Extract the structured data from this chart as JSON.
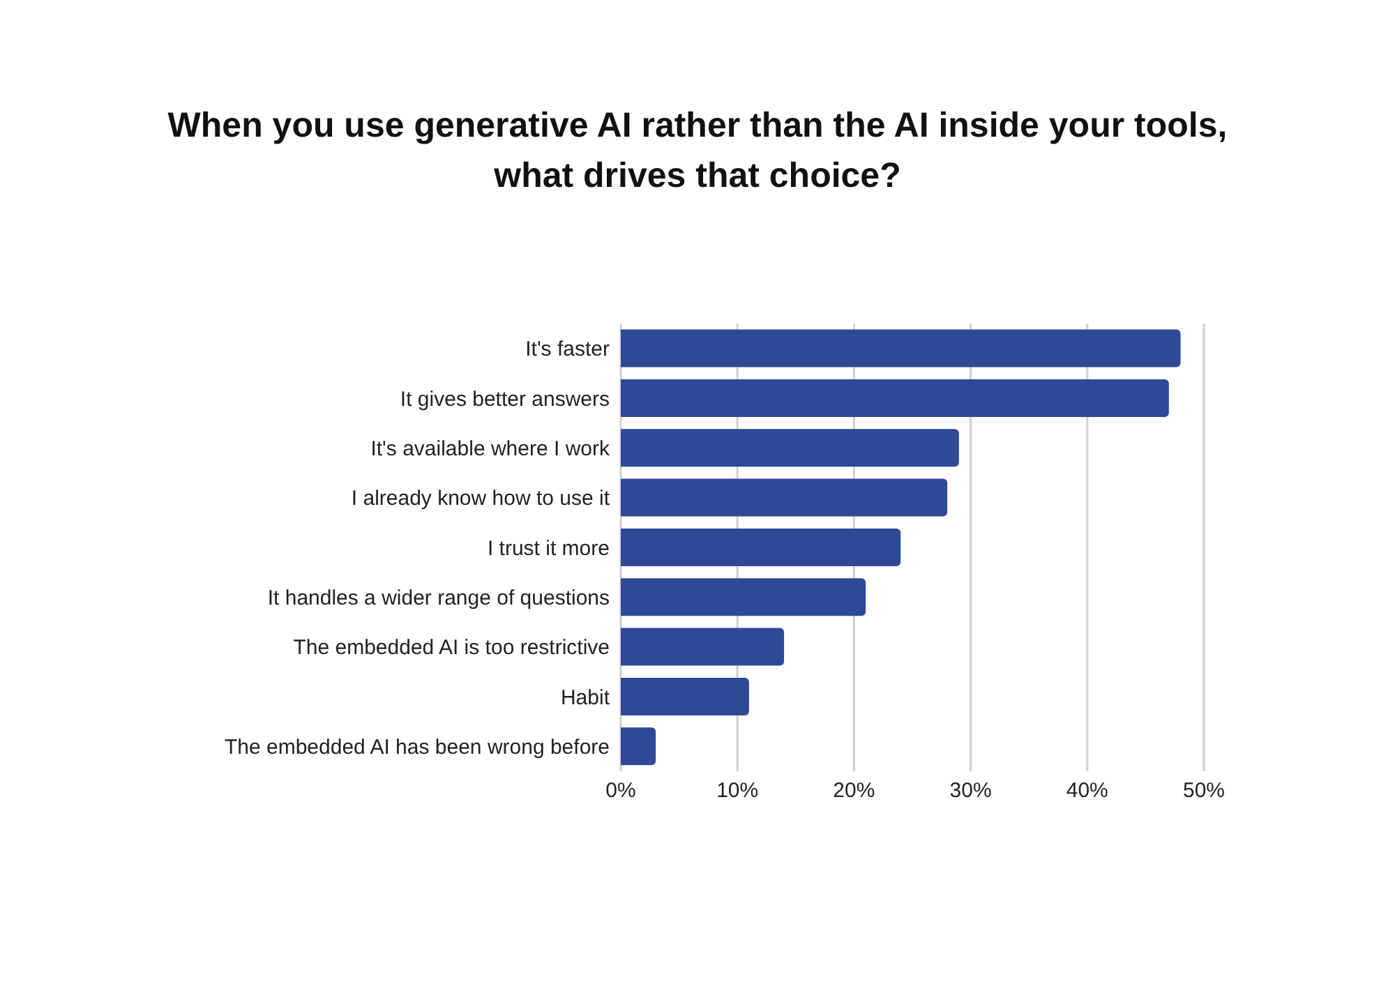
{
  "chart_data": {
    "type": "bar",
    "orientation": "horizontal",
    "title": "When you use generative AI rather than the AI inside your tools, what drives that choice?",
    "categories": [
      "It's faster",
      "It gives better answers",
      "It's available where I work",
      "I already know how to use it",
      "I trust it more",
      "It handles a wider range of questions",
      "The embedded AI is too restrictive",
      "Habit",
      "The embedded AI has been wrong before"
    ],
    "values": [
      48,
      47,
      29,
      28,
      24,
      21,
      14,
      11,
      3
    ],
    "color": "#2e4995",
    "xlim": [
      0,
      50
    ],
    "xticks": [
      {
        "value": 0,
        "label": "0%"
      },
      {
        "value": 10,
        "label": "10%"
      },
      {
        "value": 20,
        "label": "20%"
      },
      {
        "value": 30,
        "label": "30%"
      },
      {
        "value": 40,
        "label": "40%"
      },
      {
        "value": 50,
        "label": "50%"
      }
    ],
    "grid": "x"
  }
}
